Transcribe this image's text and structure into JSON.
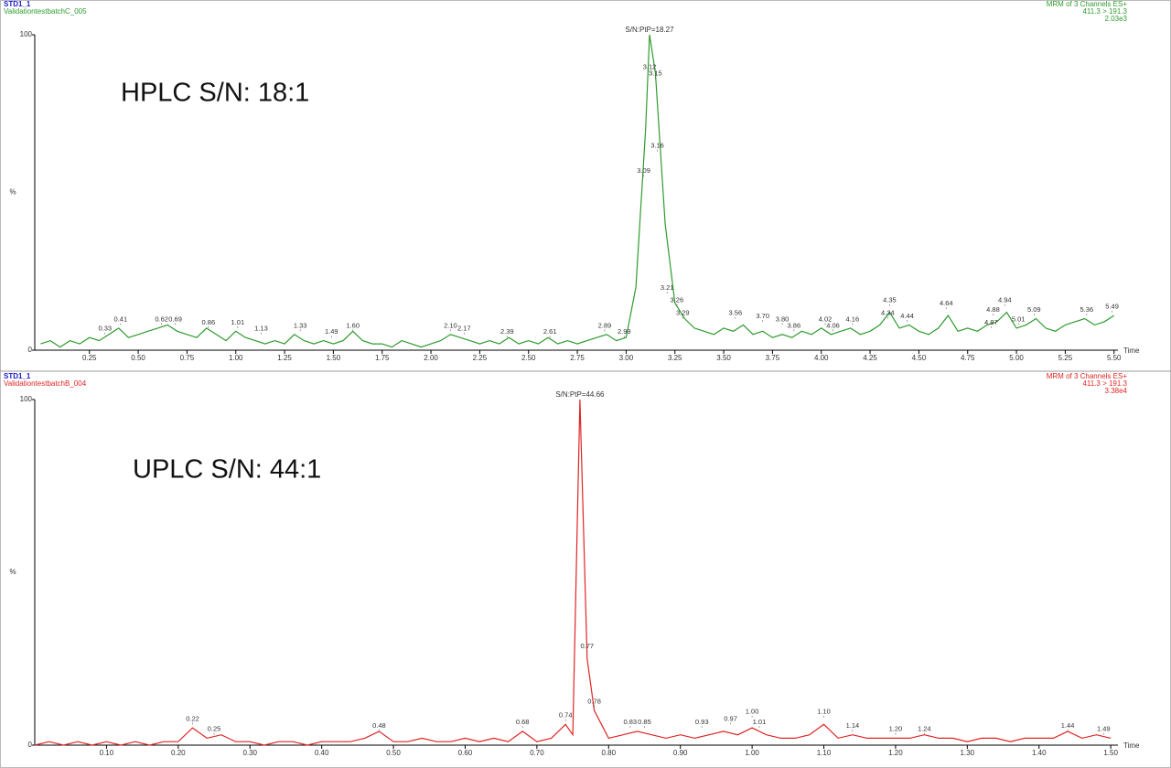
{
  "chart_data": [
    {
      "type": "line",
      "title": "STD1_1",
      "subtitle": "ValidationtestbatchC_005",
      "channel": "MRM of 3 Channels ES+",
      "transition": "411.3 > 191.3",
      "intensity": "2.03e3",
      "sn": "S/N:PtP=18.27",
      "annotation": "HPLC S/N: 18:1",
      "xlabel": "Time",
      "ylabel": "%",
      "color": "#2e9b2e",
      "xlim": [
        -0.03,
        5.52
      ],
      "ylim": [
        0,
        100
      ],
      "yticks": [
        0,
        100
      ],
      "xticks": [
        0.25,
        {
          "value": 0.5,
          "label": "0.50"
        },
        0.75,
        {
          "value": 1,
          "label": "1.00"
        },
        1.25,
        {
          "value": 1.5,
          "label": "1.50"
        },
        1.75,
        {
          "value": 2,
          "label": "2.00"
        },
        2.25,
        {
          "value": 2.5,
          "label": "2.50"
        },
        2.75,
        {
          "value": 3,
          "label": "3.00"
        },
        3.25,
        {
          "value": 3.5,
          "label": "3.50"
        },
        3.75,
        {
          "value": 4,
          "label": "4.00"
        },
        4.25,
        {
          "value": 4.5,
          "label": "4.50"
        },
        4.75,
        {
          "value": 5,
          "label": "5.00"
        },
        5.25,
        {
          "value": 5.5,
          "label": "5.50"
        }
      ],
      "x": [
        0,
        0.05,
        0.1,
        0.15,
        0.2,
        0.25,
        0.3,
        0.35,
        0.4,
        0.45,
        0.5,
        0.55,
        0.6,
        0.65,
        0.7,
        0.75,
        0.8,
        0.85,
        0.9,
        0.95,
        1,
        1.05,
        1.1,
        1.15,
        1.2,
        1.25,
        1.3,
        1.35,
        1.4,
        1.45,
        1.5,
        1.55,
        1.6,
        1.65,
        1.7,
        1.75,
        1.8,
        1.85,
        1.9,
        1.95,
        2,
        2.05,
        2.1,
        2.15,
        2.2,
        2.25,
        2.3,
        2.35,
        2.4,
        2.45,
        2.5,
        2.55,
        2.6,
        2.65,
        2.7,
        2.75,
        2.8,
        2.85,
        2.9,
        2.95,
        3,
        3.05,
        3.1,
        3.12,
        3.15,
        3.2,
        3.25,
        3.3,
        3.35,
        3.4,
        3.45,
        3.5,
        3.55,
        3.6,
        3.65,
        3.7,
        3.75,
        3.8,
        3.85,
        3.9,
        3.95,
        4,
        4.05,
        4.1,
        4.15,
        4.2,
        4.25,
        4.3,
        4.35,
        4.4,
        4.45,
        4.5,
        4.55,
        4.6,
        4.65,
        4.7,
        4.75,
        4.8,
        4.85,
        4.9,
        4.95,
        5,
        5.05,
        5.1,
        5.15,
        5.2,
        5.25,
        5.3,
        5.35,
        5.4,
        5.45,
        5.5
      ],
      "values": [
        2,
        3,
        1,
        3,
        2,
        4,
        3,
        5,
        7,
        4,
        5,
        6,
        7,
        8,
        6,
        5,
        4,
        7,
        5,
        3,
        6,
        4,
        3,
        2,
        3,
        2,
        5,
        3,
        2,
        3,
        2,
        3,
        6,
        3,
        2,
        2,
        1,
        3,
        2,
        1,
        2,
        3,
        5,
        4,
        3,
        2,
        3,
        2,
        4,
        2,
        3,
        2,
        4,
        2,
        3,
        2,
        3,
        4,
        5,
        3,
        4,
        20,
        70,
        100,
        88,
        40,
        15,
        10,
        7,
        6,
        5,
        7,
        6,
        8,
        5,
        6,
        4,
        5,
        4,
        6,
        5,
        7,
        5,
        6,
        7,
        5,
        6,
        8,
        12,
        7,
        8,
        6,
        5,
        7,
        11,
        6,
        7,
        6,
        8,
        9,
        12,
        7,
        8,
        10,
        7,
        6,
        8,
        9,
        10,
        8,
        9,
        11
      ],
      "peaks": {
        "x": [
          0.33,
          0.41,
          0.62,
          0.69,
          0.86,
          1.01,
          1.13,
          1.33,
          1.49,
          1.6,
          2.1,
          2.17,
          2.39,
          2.61,
          2.89,
          2.99,
          3.09,
          3.12,
          3.15,
          3.16,
          3.21,
          3.26,
          3.29,
          3.56,
          3.7,
          3.8,
          3.86,
          4.02,
          4.16,
          4.06,
          4.34,
          4.35,
          4.44,
          4.64,
          4.87,
          4.88,
          4.94,
          5.01,
          5.09,
          5.36,
          5.49
        ],
        "y": [
          5,
          8,
          8,
          8,
          7,
          7,
          5,
          6,
          4,
          6,
          6,
          5,
          4,
          4,
          6,
          4,
          55,
          88,
          86,
          63,
          18,
          14,
          10,
          10,
          9,
          8,
          6,
          8,
          8,
          6,
          10,
          14,
          9,
          13,
          7,
          11,
          14,
          8,
          11,
          11,
          12
        ],
        "labels": [
          "0.33",
          "0.41",
          "0.62",
          "0.69",
          "0.86",
          "1.01",
          "1.13",
          "1.33",
          "1.49",
          "1.60",
          "2.10",
          "2.17",
          "2.39",
          "2.61",
          "2.89",
          "2.99",
          "3.09",
          "3.12",
          "3.15",
          "3.16",
          "3.21",
          "3.26",
          "3.29",
          "3.56",
          "3.70",
          "3.80",
          "3.86",
          "4.02",
          "4.16",
          "4.06",
          "4.34",
          "4.35",
          "4.44",
          "4.64",
          "4.87",
          "4.88",
          "4.94",
          "5.01",
          "5.09",
          "5.36",
          "5.49"
        ]
      }
    },
    {
      "type": "line",
      "title": "STD1_1",
      "subtitle": "ValidationtestbatchB_004",
      "channel": "MRM of 3 Channels ES+",
      "transition": "411.3 > 191.3",
      "intensity": "3.38e4",
      "sn": "S/N:PtP=44.66",
      "annotation": "UPLC S/N: 44:1",
      "xlabel": "Time",
      "ylabel": "%",
      "color": "#e02424",
      "xlim": [
        0,
        1.51
      ],
      "ylim": [
        0,
        100
      ],
      "yticks": [
        0,
        100
      ],
      "xticks": [
        {
          "value": 0.1,
          "label": "0.10"
        },
        {
          "value": 0.2,
          "label": "0.20"
        },
        {
          "value": 0.3,
          "label": "0.30"
        },
        {
          "value": 0.4,
          "label": "0.40"
        },
        {
          "value": 0.5,
          "label": "0.50"
        },
        {
          "value": 0.6,
          "label": "0.60"
        },
        {
          "value": 0.7,
          "label": "0.70"
        },
        {
          "value": 0.8,
          "label": "0.80"
        },
        {
          "value": 0.9,
          "label": "0.90"
        },
        {
          "value": 1,
          "label": "1.00"
        },
        {
          "value": 1.1,
          "label": "1.10"
        },
        {
          "value": 1.2,
          "label": "1.20"
        },
        {
          "value": 1.3,
          "label": "1.30"
        },
        {
          "value": 1.4,
          "label": "1.40"
        },
        {
          "value": 1.5,
          "label": "1.50"
        }
      ],
      "x": [
        0,
        0.02,
        0.04,
        0.06,
        0.08,
        0.1,
        0.12,
        0.14,
        0.16,
        0.18,
        0.2,
        0.22,
        0.24,
        0.26,
        0.28,
        0.3,
        0.32,
        0.34,
        0.36,
        0.38,
        0.4,
        0.42,
        0.44,
        0.46,
        0.48,
        0.5,
        0.52,
        0.54,
        0.56,
        0.58,
        0.6,
        0.62,
        0.64,
        0.66,
        0.68,
        0.7,
        0.72,
        0.74,
        0.75,
        0.76,
        0.77,
        0.78,
        0.8,
        0.82,
        0.84,
        0.86,
        0.88,
        0.9,
        0.92,
        0.94,
        0.96,
        0.98,
        1,
        1.02,
        1.04,
        1.06,
        1.08,
        1.1,
        1.12,
        1.14,
        1.16,
        1.18,
        1.2,
        1.22,
        1.24,
        1.26,
        1.28,
        1.3,
        1.32,
        1.34,
        1.36,
        1.38,
        1.4,
        1.42,
        1.44,
        1.46,
        1.48,
        1.5
      ],
      "values": [
        0,
        1,
        0,
        1,
        0,
        1,
        0,
        1,
        0,
        1,
        1,
        5,
        2,
        3,
        1,
        1,
        0,
        1,
        1,
        0,
        1,
        1,
        1,
        2,
        4,
        1,
        1,
        2,
        1,
        1,
        2,
        1,
        2,
        1,
        4,
        1,
        2,
        6,
        3,
        100,
        25,
        10,
        2,
        3,
        4,
        3,
        2,
        3,
        2,
        3,
        4,
        3,
        5,
        3,
        2,
        2,
        3,
        6,
        2,
        3,
        2,
        2,
        2,
        2,
        3,
        2,
        2,
        1,
        2,
        2,
        1,
        2,
        2,
        2,
        4,
        2,
        3,
        2
      ],
      "peaks": {
        "x": [
          0.22,
          0.25,
          0.48,
          0.68,
          0.74,
          0.77,
          0.78,
          0.83,
          0.85,
          0.93,
          0.97,
          1.0,
          1.01,
          1.1,
          1.14,
          1.2,
          1.24,
          1.44,
          1.49
        ],
        "y": [
          6,
          3,
          4,
          5,
          7,
          27,
          11,
          5,
          5,
          5,
          6,
          8,
          5,
          8,
          4,
          3,
          3,
          4,
          3
        ],
        "labels": [
          "0.22",
          "0.25",
          "0.48",
          "0.68",
          "0.74",
          "0.77",
          "0.78",
          "0.83",
          "0.85",
          "0.93",
          "0.97",
          "1.00",
          "1.01",
          "1.10",
          "1.14",
          "1.20",
          "1.24",
          "1.44",
          "1.49"
        ]
      }
    }
  ]
}
